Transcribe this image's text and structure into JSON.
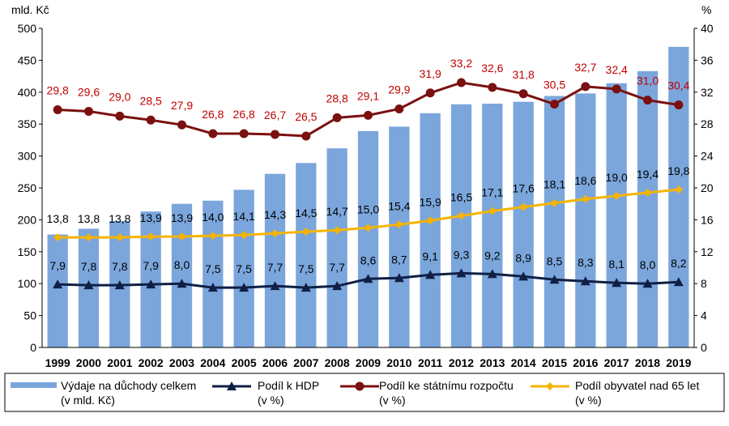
{
  "chart_data": {
    "type": "bar",
    "categories": [
      "1999",
      "2000",
      "2001",
      "2002",
      "2003",
      "2004",
      "2005",
      "2006",
      "2007",
      "2008",
      "2009",
      "2010",
      "2011",
      "2012",
      "2013",
      "2014",
      "2015",
      "2016",
      "2017",
      "2018",
      "2019"
    ],
    "left_axis": {
      "unit_label": "mld. Kč",
      "ylim": [
        0,
        500
      ],
      "ticks": [
        "0",
        "50",
        "100",
        "150",
        "200",
        "250",
        "300",
        "350",
        "400",
        "450",
        "500"
      ]
    },
    "right_axis": {
      "unit_label": "%",
      "ylim": [
        0,
        40
      ],
      "ticks": [
        "0",
        "4",
        "8",
        "12",
        "16",
        "20",
        "24",
        "28",
        "32",
        "36",
        "40"
      ]
    },
    "grid": false,
    "legend_position": "bottom",
    "series": [
      {
        "name": "Výdaje na důchody celkem",
        "name_line2": "(v mld. Kč)",
        "type": "bar",
        "axis": "left",
        "color": "#7BA6DC",
        "values": [
          177,
          186,
          198,
          213,
          225,
          230,
          247,
          272,
          289,
          312,
          339,
          346,
          367,
          381,
          382,
          385,
          394,
          398,
          414,
          433,
          471
        ]
      },
      {
        "name": "Podíl k HDP",
        "name_line2": "(v %)",
        "type": "line",
        "axis": "right",
        "color": "#0F1F45",
        "marker": "triangle",
        "values": [
          7.9,
          7.8,
          7.8,
          7.9,
          8.0,
          7.5,
          7.5,
          7.7,
          7.5,
          7.7,
          8.6,
          8.7,
          9.1,
          9.3,
          9.2,
          8.9,
          8.5,
          8.3,
          8.1,
          8.0,
          8.2
        ],
        "labels": [
          "7,9",
          "7,8",
          "7,8",
          "7,9",
          "8,0",
          "7,5",
          "7,5",
          "7,7",
          "7,5",
          "7,7",
          "8,6",
          "8,7",
          "9,1",
          "9,3",
          "9,2",
          "8,9",
          "8,5",
          "8,3",
          "8,1",
          "8,0",
          "8,2"
        ]
      },
      {
        "name": "Podíl ke státnímu rozpočtu",
        "name_line2": "(v %)",
        "type": "line",
        "axis": "right",
        "color": "#7B1010",
        "marker": "circle",
        "values": [
          29.8,
          29.6,
          29.0,
          28.5,
          27.9,
          26.8,
          26.8,
          26.7,
          26.5,
          28.8,
          29.1,
          29.9,
          31.9,
          33.2,
          32.6,
          31.8,
          30.5,
          32.7,
          32.4,
          31.0,
          30.4
        ],
        "labels": [
          "29,8",
          "29,6",
          "29,0",
          "28,5",
          "27,9",
          "26,8",
          "26,8",
          "26,7",
          "26,5",
          "28,8",
          "29,1",
          "29,9",
          "31,9",
          "33,2",
          "32,6",
          "31,8",
          "30,5",
          "32,7",
          "32,4",
          "31,0",
          "30,4"
        ]
      },
      {
        "name": "Podíl obyvatel nad 65 let",
        "name_line2": "(v %)",
        "type": "line",
        "axis": "right",
        "color": "#F5B400",
        "marker": "diamond",
        "values": [
          13.8,
          13.8,
          13.8,
          13.9,
          13.9,
          14.0,
          14.1,
          14.3,
          14.5,
          14.7,
          15.0,
          15.4,
          15.9,
          16.5,
          17.1,
          17.6,
          18.1,
          18.6,
          19.0,
          19.4,
          19.8
        ],
        "labels": [
          "13,8",
          "13,8",
          "13,8",
          "13,9",
          "13,9",
          "14,0",
          "14,1",
          "14,3",
          "14,5",
          "14,7",
          "15,0",
          "15,4",
          "15,9",
          "16,5",
          "17,1",
          "17,6",
          "18,1",
          "18,6",
          "19,0",
          "19,4",
          "19,8"
        ]
      }
    ]
  }
}
